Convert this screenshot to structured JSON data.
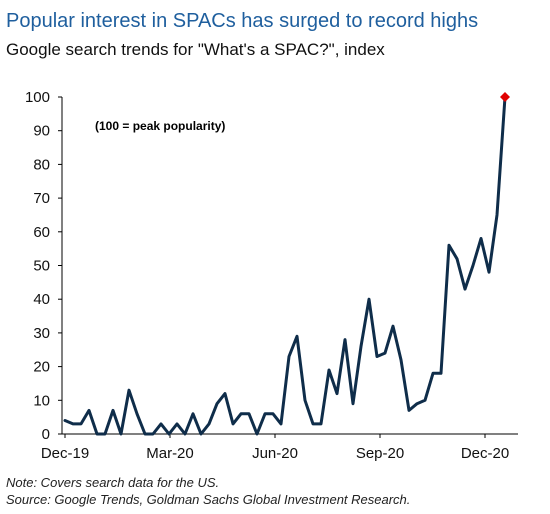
{
  "header": {
    "title": "Popular interest in SPACs has surged to record highs",
    "subtitle": "Google search trends for \"What's a SPAC?\", index"
  },
  "footer": {
    "note": "Note: Covers search data for the US.",
    "source": "Source: Google Trends, Goldman Sachs Global Investment Research."
  },
  "chart_data": {
    "type": "line",
    "title": "Popular interest in SPACs has surged to record highs",
    "subtitle": "Google search trends for \"What's a SPAC?\", index",
    "annotation": "(100 = peak popularity)",
    "ylim": [
      0,
      100
    ],
    "yticks": [
      0,
      10,
      20,
      30,
      40,
      50,
      60,
      70,
      80,
      90,
      100
    ],
    "xtick_labels": [
      "Dec-19",
      "Mar-20",
      "Jun-20",
      "Sep-20",
      "Dec-20"
    ],
    "grid": false,
    "colors": {
      "line": "#0f2d4a",
      "peak_marker": "#e00000",
      "axis": "#000000"
    },
    "series": [
      {
        "values": [
          4,
          3,
          3,
          7,
          0,
          0,
          7,
          0,
          13,
          6,
          0,
          0,
          3,
          0,
          3,
          0,
          6,
          0,
          3,
          9,
          12,
          3,
          6,
          6,
          0,
          6,
          6,
          3,
          23,
          29,
          10,
          3,
          3,
          19,
          12,
          28,
          9,
          26,
          40,
          23,
          24,
          32,
          22,
          7,
          9,
          10,
          18,
          18,
          56,
          52,
          43,
          50,
          58,
          48,
          65,
          100
        ]
      }
    ]
  }
}
